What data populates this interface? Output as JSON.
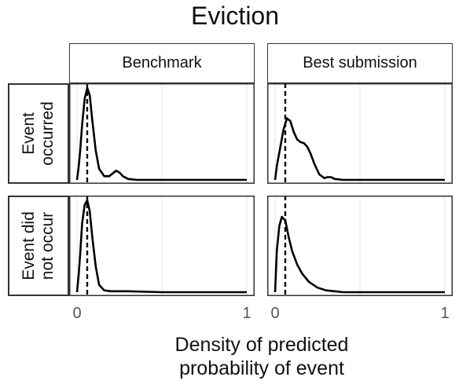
{
  "chart_data": {
    "type": "area",
    "title": "Eviction",
    "xlabel_lines": [
      "Density of predicted",
      "probability of event"
    ],
    "columns": [
      "Benchmark",
      "Best submission"
    ],
    "rows": [
      [
        "Event",
        "occurred"
      ],
      [
        "Event did",
        "not occur"
      ]
    ],
    "xlim": [
      0,
      1
    ],
    "x_ticks": [
      "0",
      "1"
    ],
    "grid": true,
    "facets": [
      {
        "column": "Benchmark",
        "row": "Event occurred",
        "dashed_line_x": 0.06,
        "x": [
          0.0,
          0.01,
          0.02,
          0.03,
          0.045,
          0.06,
          0.075,
          0.09,
          0.11,
          0.13,
          0.16,
          0.19,
          0.21,
          0.23,
          0.25,
          0.27,
          0.3,
          0.35,
          0.5,
          0.7,
          1.0
        ],
        "density": [
          0.0,
          0.15,
          0.35,
          0.6,
          0.88,
          1.0,
          0.92,
          0.65,
          0.32,
          0.12,
          0.04,
          0.04,
          0.07,
          0.1,
          0.08,
          0.04,
          0.01,
          0.0,
          0.0,
          0.0,
          0.0
        ]
      },
      {
        "column": "Best submission",
        "row": "Event occurred",
        "dashed_line_x": 0.06,
        "x": [
          0.0,
          0.01,
          0.03,
          0.05,
          0.07,
          0.09,
          0.11,
          0.13,
          0.15,
          0.17,
          0.19,
          0.21,
          0.23,
          0.26,
          0.29,
          0.31,
          0.33,
          0.35,
          0.4,
          0.5,
          1.0
        ],
        "density": [
          0.0,
          0.15,
          0.35,
          0.55,
          0.67,
          0.64,
          0.52,
          0.44,
          0.41,
          0.4,
          0.36,
          0.28,
          0.18,
          0.06,
          0.02,
          0.03,
          0.03,
          0.01,
          0.0,
          0.0,
          0.0
        ]
      },
      {
        "column": "Benchmark",
        "row": "Event did not occur",
        "dashed_line_x": 0.06,
        "x": [
          0.0,
          0.01,
          0.02,
          0.03,
          0.045,
          0.06,
          0.075,
          0.09,
          0.11,
          0.13,
          0.16,
          0.2,
          0.3,
          0.5,
          0.7,
          1.0
        ],
        "density": [
          0.0,
          0.2,
          0.45,
          0.75,
          0.95,
          1.0,
          0.88,
          0.6,
          0.28,
          0.08,
          0.02,
          0.01,
          0.01,
          0.0,
          0.0,
          0.0
        ]
      },
      {
        "column": "Best submission",
        "row": "Event did not occur",
        "dashed_line_x": 0.06,
        "x": [
          0.0,
          0.01,
          0.025,
          0.04,
          0.06,
          0.08,
          0.1,
          0.13,
          0.16,
          0.2,
          0.25,
          0.3,
          0.35,
          0.4,
          0.5,
          0.7,
          1.0
        ],
        "density": [
          0.0,
          0.45,
          0.72,
          0.82,
          0.78,
          0.6,
          0.45,
          0.3,
          0.2,
          0.11,
          0.05,
          0.02,
          0.01,
          0.0,
          0.0,
          0.0,
          0.0
        ]
      }
    ]
  }
}
